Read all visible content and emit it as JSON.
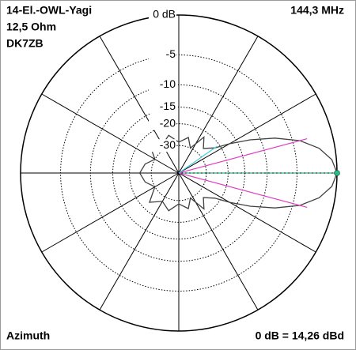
{
  "chart_data": {
    "type": "polar",
    "scale": "arrl",
    "title": "14-El.-OWL-Yagi",
    "subtitle": "12,5 Ohm",
    "author": "DK7ZB",
    "frequency": "144,3 MHz",
    "plane": "Azimuth",
    "reference": "0 dB = 14,26 dBd",
    "rticks": [
      {
        "value": 0,
        "label": "0 dB"
      },
      -5,
      -10,
      -15,
      -20,
      -30
    ],
    "thetaticks": [
      0,
      30,
      60,
      90,
      120,
      150,
      180,
      210,
      240,
      270,
      300,
      330
    ],
    "x": [
      0,
      5,
      10,
      15,
      20,
      25,
      30,
      35,
      45,
      55,
      65,
      75,
      90,
      105,
      120,
      135,
      150,
      165,
      180,
      195,
      210,
      225,
      240,
      255,
      270,
      285,
      295,
      305,
      315,
      325,
      330,
      335,
      340,
      345,
      350,
      355
    ],
    "values": [
      0,
      -0.5,
      -1.8,
      -4,
      -7.5,
      -12,
      -17,
      -22,
      -26,
      -22,
      -30,
      -25,
      -28,
      -24,
      -27,
      -23,
      -30,
      -26,
      -24,
      -26,
      -30,
      -23,
      -27,
      -24,
      -28,
      -25,
      -30,
      -22,
      -26,
      -22,
      -17,
      -12,
      -7.5,
      -4,
      -1.8,
      -0.5
    ],
    "color": "#404040",
    "markers": [
      {
        "angle": 0,
        "value": 0,
        "color": "#20c080"
      },
      {
        "angle": 15,
        "value": -3,
        "color": "#e040c0"
      },
      {
        "angle": -15,
        "value": -3,
        "color": "#e040c0"
      },
      {
        "angle": 35,
        "value": -21,
        "color": "#40d0e0"
      }
    ]
  }
}
